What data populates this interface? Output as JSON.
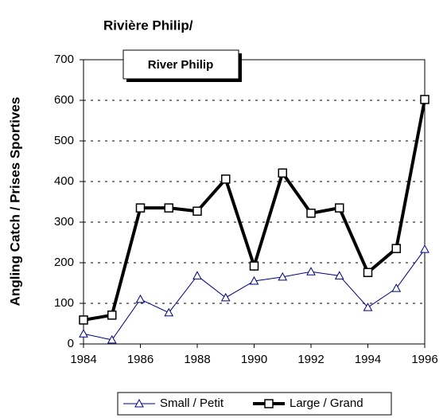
{
  "chart_data": {
    "type": "line",
    "title": "Rivière Philip/",
    "inset_title": "River Philip",
    "y_label": "Angling Catch / Prises Sportives",
    "x": [
      1984,
      1985,
      1986,
      1987,
      1988,
      1989,
      1990,
      1991,
      1992,
      1993,
      1994,
      1995,
      1996
    ],
    "series": [
      {
        "name": "Small / Petit",
        "color": "#000080",
        "marker": "triangle",
        "values": [
          25,
          10,
          110,
          77,
          168,
          114,
          155,
          165,
          178,
          168,
          90,
          137,
          233
        ]
      },
      {
        "name": "Large / Grand",
        "color": "#000000",
        "marker": "square",
        "values": [
          59,
          71,
          335,
          335,
          327,
          406,
          192,
          421,
          322,
          335,
          176,
          235,
          602
        ]
      }
    ],
    "xlim": [
      1984,
      1996
    ],
    "xticks": [
      1984,
      1986,
      1988,
      1990,
      1992,
      1994,
      1996
    ],
    "ylim": [
      0,
      700
    ],
    "yticks": [
      0,
      100,
      200,
      300,
      400,
      500,
      600,
      700
    ],
    "grid": true,
    "legend": "bottom"
  }
}
